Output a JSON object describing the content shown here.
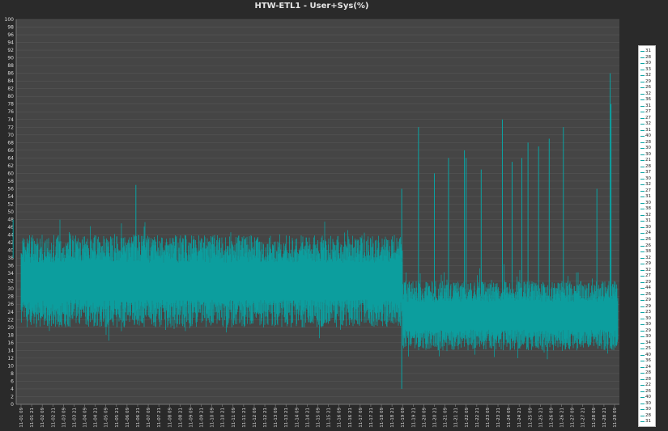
{
  "chart_data": {
    "type": "line",
    "title": "HTW-ETL1 - User+Sys(%)",
    "xlabel": "",
    "ylabel": "",
    "ylim": [
      0,
      100
    ],
    "grid": true,
    "legend_position": "right",
    "series_color": "#0aa3a3",
    "categories": [
      "11-01 09",
      "11-01 21",
      "11-02 09",
      "11-02 21",
      "11-03 09",
      "11-03 21",
      "11-04 09",
      "11-04 21",
      "11-05 09",
      "11-05 21",
      "11-06 09",
      "11-06 21",
      "11-07 09",
      "11-07 21",
      "11-08 09",
      "11-08 21",
      "11-09 09",
      "11-09 21",
      "11-10 09",
      "11-10 21",
      "11-11 09",
      "11-11 21",
      "11-12 09",
      "11-12 21",
      "11-13 09",
      "11-13 21",
      "11-14 09",
      "11-14 21",
      "11-15 09",
      "11-15 21",
      "11-16 09",
      "11-16 21",
      "11-17 09",
      "11-17 21",
      "11-18 09",
      "11-18 21",
      "11-19 09",
      "11-19 21",
      "11-20 09",
      "11-20 21",
      "11-21 09",
      "11-21 21",
      "11-22 09",
      "11-22 21",
      "11-23 09",
      "11-23 21",
      "11-24 09",
      "11-24 21",
      "11-25 09",
      "11-25 21",
      "11-26 09",
      "11-26 21",
      "11-27 09",
      "11-27 21",
      "11-28 09",
      "11-28 21",
      "11-29 09"
    ],
    "series_summary": [
      {
        "period": "11-01 09 to 11-19 09",
        "typical_min": 20,
        "typical_max": 44,
        "mean": 33
      },
      {
        "period": "11-19 09 to 11-29 09",
        "typical_min": 14,
        "typical_max": 32,
        "mean": 23
      }
    ],
    "spikes": [
      {
        "x": "11-01 00",
        "y": 48
      },
      {
        "x": "11-06 19",
        "y": 57
      },
      {
        "x": "11-19 08",
        "y": 56
      },
      {
        "x": "11-19 08",
        "y": 4
      },
      {
        "x": "11-20 03",
        "y": 72
      },
      {
        "x": "11-20 21",
        "y": 60
      },
      {
        "x": "11-21 13",
        "y": 64
      },
      {
        "x": "11-22 07",
        "y": 66
      },
      {
        "x": "11-22 09",
        "y": 64
      },
      {
        "x": "11-23 02",
        "y": 61
      },
      {
        "x": "11-24 02",
        "y": 74
      },
      {
        "x": "11-24 13",
        "y": 63
      },
      {
        "x": "11-25 00",
        "y": 64
      },
      {
        "x": "11-25 07",
        "y": 68
      },
      {
        "x": "11-25 19",
        "y": 67
      },
      {
        "x": "11-26 07",
        "y": 69
      },
      {
        "x": "11-26 23",
        "y": 72
      },
      {
        "x": "11-28 13",
        "y": 56
      },
      {
        "x": "11-29 04",
        "y": 86
      },
      {
        "x": "11-29 05",
        "y": 78
      }
    ],
    "legend_entries": [
      "31",
      "28",
      "30",
      "33",
      "32",
      "29",
      "26",
      "32",
      "36",
      "31",
      "27",
      "27",
      "32",
      "31",
      "40",
      "28",
      "30",
      "30",
      "21",
      "28",
      "37",
      "30",
      "32",
      "27",
      "31",
      "30",
      "38",
      "32",
      "31",
      "30",
      "24",
      "26",
      "26",
      "38",
      "32",
      "29",
      "32",
      "27",
      "29",
      "44",
      "26",
      "29",
      "29",
      "23",
      "30",
      "30",
      "29",
      "30",
      "34",
      "25",
      "40",
      "36",
      "24",
      "28",
      "28",
      "22",
      "26",
      "40",
      "30",
      "30",
      "28",
      "31"
    ]
  }
}
